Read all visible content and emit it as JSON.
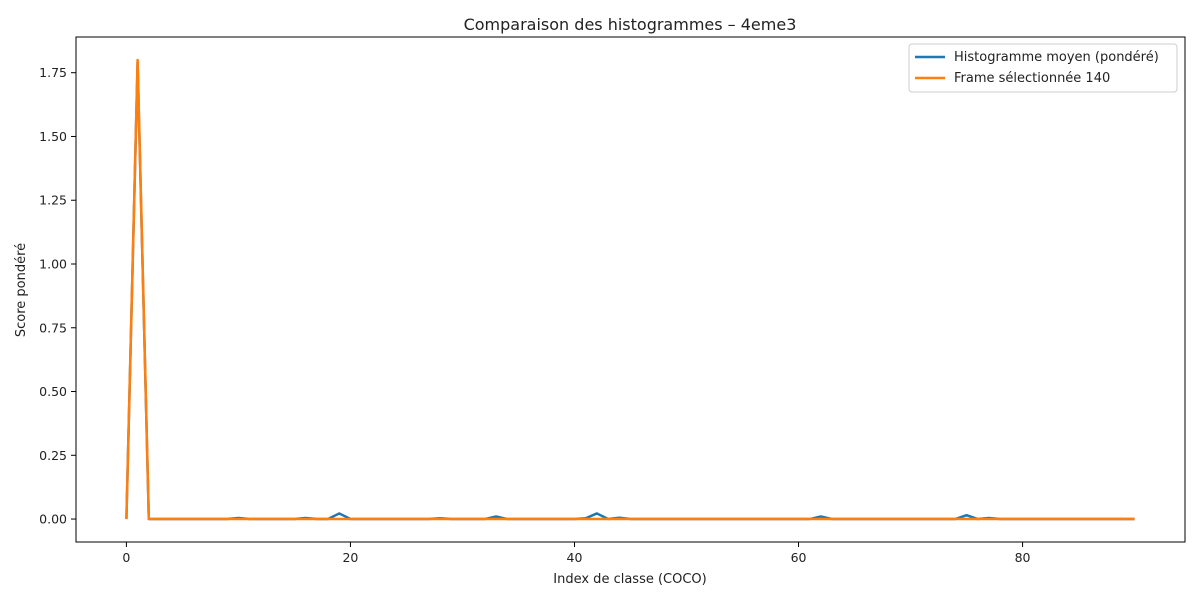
{
  "chart_data": {
    "type": "line",
    "title": "Comparaison des histogrammes – 4eme3",
    "xlabel": "Index de classe (COCO)",
    "ylabel": "Score pondéré",
    "xlim": [
      -4.5,
      94.5
    ],
    "ylim": [
      -0.09,
      1.89
    ],
    "xticks": [
      0,
      20,
      40,
      60,
      80
    ],
    "yticks": [
      0.0,
      0.25,
      0.5,
      0.75,
      1.0,
      1.25,
      1.5,
      1.75
    ],
    "xtick_labels": [
      "0",
      "20",
      "40",
      "60",
      "80"
    ],
    "ytick_labels": [
      "0.00",
      "0.25",
      "0.50",
      "0.75",
      "1.00",
      "1.25",
      "1.50",
      "1.75"
    ],
    "grid": false,
    "legend_position": "top-right",
    "series": [
      {
        "name": "Histogramme moyen (pondéré)",
        "color": "#1f77b4",
        "x": [
          0,
          1,
          2,
          9,
          10,
          11,
          15,
          16,
          17,
          18,
          19,
          20,
          27,
          28,
          29,
          32,
          33,
          34,
          40,
          41,
          42,
          43,
          44,
          45,
          61,
          62,
          63,
          74,
          75,
          76,
          77,
          78,
          90
        ],
        "y": [
          0,
          1.79,
          0,
          0,
          0.004,
          0,
          0,
          0.004,
          0,
          0,
          0.022,
          0,
          0,
          0.003,
          0,
          0,
          0.01,
          0,
          0,
          0.003,
          0.022,
          0,
          0.005,
          0,
          0,
          0.01,
          0,
          0,
          0.015,
          0,
          0.004,
          0,
          0
        ]
      },
      {
        "name": "Frame sélectionnée 140",
        "color": "#ff7f0e",
        "x": [
          0,
          1,
          2,
          3,
          90
        ],
        "y": [
          0,
          1.8,
          0,
          0,
          0
        ]
      }
    ]
  }
}
